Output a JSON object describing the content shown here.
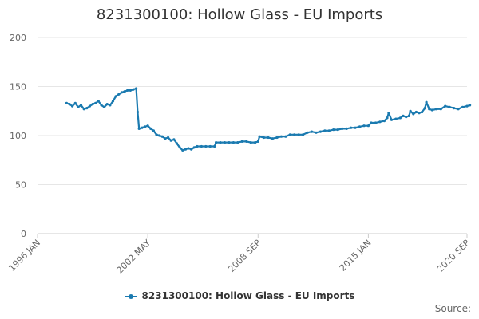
{
  "colors": {
    "series": "#1a7ab0",
    "grid": "#e6e6e6",
    "axis": "#cccccc"
  },
  "chart_data": {
    "type": "line",
    "title": "8231300100: Hollow Glass - EU Imports",
    "xlabel": "",
    "ylabel": "",
    "ylim": [
      0,
      200
    ],
    "y_ticks": [
      0,
      50,
      100,
      150,
      200
    ],
    "x_ticks": [
      "1996 JAN",
      "2002 MAY",
      "2008 SEP",
      "2015 JAN",
      "2020 SEP"
    ],
    "x_tick_positions": [
      "1996-01",
      "2002-05",
      "2008-09",
      "2015-01",
      "2020-09"
    ],
    "grid": true,
    "legend": "bottom-center",
    "series": [
      {
        "name": "8231300100: Hollow Glass - EU Imports",
        "points": [
          [
            "1997-09",
            133
          ],
          [
            "1997-11",
            132
          ],
          [
            "1998-01",
            130
          ],
          [
            "1998-03",
            133
          ],
          [
            "1998-05",
            129
          ],
          [
            "1998-07",
            131
          ],
          [
            "1998-09",
            127
          ],
          [
            "1998-11",
            128
          ],
          [
            "1999-01",
            130
          ],
          [
            "1999-03",
            132
          ],
          [
            "1999-05",
            133
          ],
          [
            "1999-07",
            135
          ],
          [
            "1999-09",
            131
          ],
          [
            "1999-11",
            129
          ],
          [
            "2000-01",
            132
          ],
          [
            "2000-03",
            131
          ],
          [
            "2000-05",
            135
          ],
          [
            "2000-07",
            140
          ],
          [
            "2000-09",
            142
          ],
          [
            "2000-11",
            144
          ],
          [
            "2001-01",
            145
          ],
          [
            "2001-03",
            146
          ],
          [
            "2001-05",
            146
          ],
          [
            "2001-07",
            147
          ],
          [
            "2001-09",
            148
          ],
          [
            "2001-10",
            124
          ],
          [
            "2001-11",
            107
          ],
          [
            "2002-01",
            108
          ],
          [
            "2002-03",
            109
          ],
          [
            "2002-05",
            110
          ],
          [
            "2002-07",
            107
          ],
          [
            "2002-09",
            105
          ],
          [
            "2002-11",
            101
          ],
          [
            "2003-01",
            100
          ],
          [
            "2003-03",
            99
          ],
          [
            "2003-05",
            97
          ],
          [
            "2003-07",
            98
          ],
          [
            "2003-09",
            95
          ],
          [
            "2003-11",
            96
          ],
          [
            "2004-01",
            92
          ],
          [
            "2004-03",
            88
          ],
          [
            "2004-05",
            85
          ],
          [
            "2004-07",
            86
          ],
          [
            "2004-09",
            87
          ],
          [
            "2004-11",
            86
          ],
          [
            "2005-01",
            88
          ],
          [
            "2005-03",
            89
          ],
          [
            "2005-06",
            89
          ],
          [
            "2005-09",
            89
          ],
          [
            "2005-12",
            89
          ],
          [
            "2006-03",
            89
          ],
          [
            "2006-04",
            93
          ],
          [
            "2006-07",
            93
          ],
          [
            "2006-10",
            93
          ],
          [
            "2007-01",
            93
          ],
          [
            "2007-04",
            93
          ],
          [
            "2007-07",
            93
          ],
          [
            "2007-10",
            94
          ],
          [
            "2008-01",
            94
          ],
          [
            "2008-04",
            93
          ],
          [
            "2008-07",
            93
          ],
          [
            "2008-09",
            94
          ],
          [
            "2008-10",
            99
          ],
          [
            "2009-01",
            98
          ],
          [
            "2009-04",
            98
          ],
          [
            "2009-07",
            97
          ],
          [
            "2009-10",
            98
          ],
          [
            "2010-01",
            99
          ],
          [
            "2010-04",
            99
          ],
          [
            "2010-07",
            101
          ],
          [
            "2010-10",
            101
          ],
          [
            "2011-01",
            101
          ],
          [
            "2011-04",
            101
          ],
          [
            "2011-07",
            103
          ],
          [
            "2011-10",
            104
          ],
          [
            "2012-01",
            103
          ],
          [
            "2012-04",
            104
          ],
          [
            "2012-07",
            105
          ],
          [
            "2012-10",
            105
          ],
          [
            "2013-01",
            106
          ],
          [
            "2013-04",
            106
          ],
          [
            "2013-07",
            107
          ],
          [
            "2013-10",
            107
          ],
          [
            "2014-01",
            108
          ],
          [
            "2014-04",
            108
          ],
          [
            "2014-07",
            109
          ],
          [
            "2014-10",
            110
          ],
          [
            "2015-01",
            110
          ],
          [
            "2015-03",
            113
          ],
          [
            "2015-06",
            113
          ],
          [
            "2015-09",
            114
          ],
          [
            "2015-12",
            115
          ],
          [
            "2016-02",
            118
          ],
          [
            "2016-03",
            123
          ],
          [
            "2016-05",
            116
          ],
          [
            "2016-08",
            117
          ],
          [
            "2016-11",
            118
          ],
          [
            "2017-01",
            120
          ],
          [
            "2017-03",
            119
          ],
          [
            "2017-05",
            120
          ],
          [
            "2017-06",
            125
          ],
          [
            "2017-08",
            122
          ],
          [
            "2017-10",
            124
          ],
          [
            "2017-12",
            123
          ],
          [
            "2018-02",
            124
          ],
          [
            "2018-04",
            128
          ],
          [
            "2018-05",
            134
          ],
          [
            "2018-07",
            127
          ],
          [
            "2018-09",
            126
          ],
          [
            "2018-12",
            127
          ],
          [
            "2019-03",
            127
          ],
          [
            "2019-06",
            130
          ],
          [
            "2019-09",
            129
          ],
          [
            "2019-12",
            128
          ],
          [
            "2020-03",
            127
          ],
          [
            "2020-06",
            129
          ],
          [
            "2020-09",
            130
          ],
          [
            "2020-11",
            131
          ]
        ]
      }
    ]
  },
  "footer": {
    "source": "Source:"
  }
}
